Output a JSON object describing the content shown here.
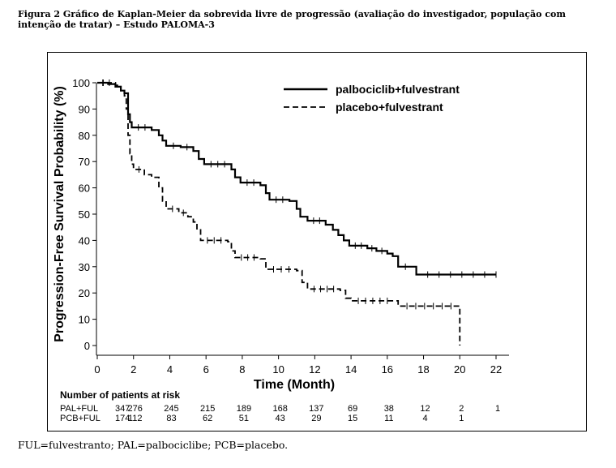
{
  "caption": "Figura 2 Gráfico de Kaplan-Meier da sobrevida livre de progressão (avaliação do investigador, população com intenção de tratar) – Estudo PALOMA-3",
  "footnote": "FUL=fulvestranto; PAL=palbociclibe; PCB=placebo.",
  "chart_data": {
    "type": "line",
    "subtype": "kaplan-meier step",
    "title": "",
    "xlabel": "Time (Month)",
    "ylabel": "Progression-Free Survival Probability (%)",
    "xlim": [
      0,
      22
    ],
    "ylim": [
      0,
      100
    ],
    "xticks": [
      0,
      2,
      4,
      6,
      8,
      10,
      12,
      14,
      16,
      18,
      20,
      22
    ],
    "yticks": [
      0,
      10,
      20,
      30,
      40,
      50,
      60,
      70,
      80,
      90,
      100
    ],
    "grid": false,
    "legend_position": "top-right",
    "series": [
      {
        "name": "palbociclib+fulvestrant",
        "line_style": "solid",
        "color": "#000000",
        "points": [
          [
            0,
            100
          ],
          [
            0.6,
            99.5
          ],
          [
            1.0,
            98.5
          ],
          [
            1.3,
            97
          ],
          [
            1.5,
            96
          ],
          [
            1.7,
            88
          ],
          [
            1.8,
            85
          ],
          [
            1.9,
            83
          ],
          [
            3.0,
            82
          ],
          [
            3.4,
            80
          ],
          [
            3.6,
            78
          ],
          [
            3.8,
            76
          ],
          [
            4.6,
            75.5
          ],
          [
            5.3,
            74
          ],
          [
            5.6,
            71
          ],
          [
            5.9,
            69
          ],
          [
            7.4,
            67
          ],
          [
            7.6,
            64
          ],
          [
            7.9,
            62
          ],
          [
            9.0,
            61
          ],
          [
            9.3,
            58
          ],
          [
            9.5,
            55.5
          ],
          [
            10.6,
            55
          ],
          [
            11.0,
            52
          ],
          [
            11.2,
            49
          ],
          [
            11.6,
            47.5
          ],
          [
            12.6,
            46
          ],
          [
            13.0,
            44
          ],
          [
            13.3,
            42
          ],
          [
            13.6,
            40
          ],
          [
            13.9,
            38
          ],
          [
            14.9,
            37
          ],
          [
            15.4,
            36
          ],
          [
            16.0,
            35
          ],
          [
            16.3,
            34
          ],
          [
            16.6,
            30
          ],
          [
            17.4,
            30
          ],
          [
            17.6,
            27
          ],
          [
            22.0,
            27
          ]
        ]
      },
      {
        "name": "placebo+fulvestrant",
        "line_style": "dashed",
        "color": "#000000",
        "points": [
          [
            0,
            100
          ],
          [
            1.0,
            99
          ],
          [
            1.3,
            97
          ],
          [
            1.5,
            95
          ],
          [
            1.6,
            90
          ],
          [
            1.7,
            80
          ],
          [
            1.8,
            73
          ],
          [
            1.9,
            69
          ],
          [
            2.0,
            67
          ],
          [
            2.6,
            65
          ],
          [
            3.0,
            64
          ],
          [
            3.4,
            60
          ],
          [
            3.6,
            55
          ],
          [
            3.8,
            52
          ],
          [
            4.5,
            50.5
          ],
          [
            5.0,
            49
          ],
          [
            5.3,
            47
          ],
          [
            5.5,
            44
          ],
          [
            5.7,
            40
          ],
          [
            7.2,
            39.5
          ],
          [
            7.4,
            36
          ],
          [
            7.6,
            33.5
          ],
          [
            9.0,
            33
          ],
          [
            9.3,
            29
          ],
          [
            11.0,
            28.5
          ],
          [
            11.3,
            24
          ],
          [
            11.6,
            21.5
          ],
          [
            13.4,
            21
          ],
          [
            13.7,
            18
          ],
          [
            14.0,
            17
          ],
          [
            16.4,
            17
          ],
          [
            16.6,
            15
          ],
          [
            20.0,
            15
          ],
          [
            20.0,
            0
          ]
        ]
      }
    ],
    "risk_table": {
      "title": "Number of patients at risk",
      "timepoints": [
        0,
        2,
        4,
        6,
        8,
        10,
        12,
        14,
        16,
        18,
        20,
        22
      ],
      "rows": [
        {
          "label": "PAL+FUL",
          "values": [
            "347",
            "276",
            "245",
            "215",
            "189",
            "168",
            "137",
            "69",
            "38",
            "12",
            "2",
            "1"
          ]
        },
        {
          "label": "PCB+FUL",
          "values": [
            "174",
            "112",
            "83",
            "62",
            "51",
            "43",
            "29",
            "15",
            "11",
            "4",
            "1",
            ""
          ]
        }
      ]
    }
  }
}
